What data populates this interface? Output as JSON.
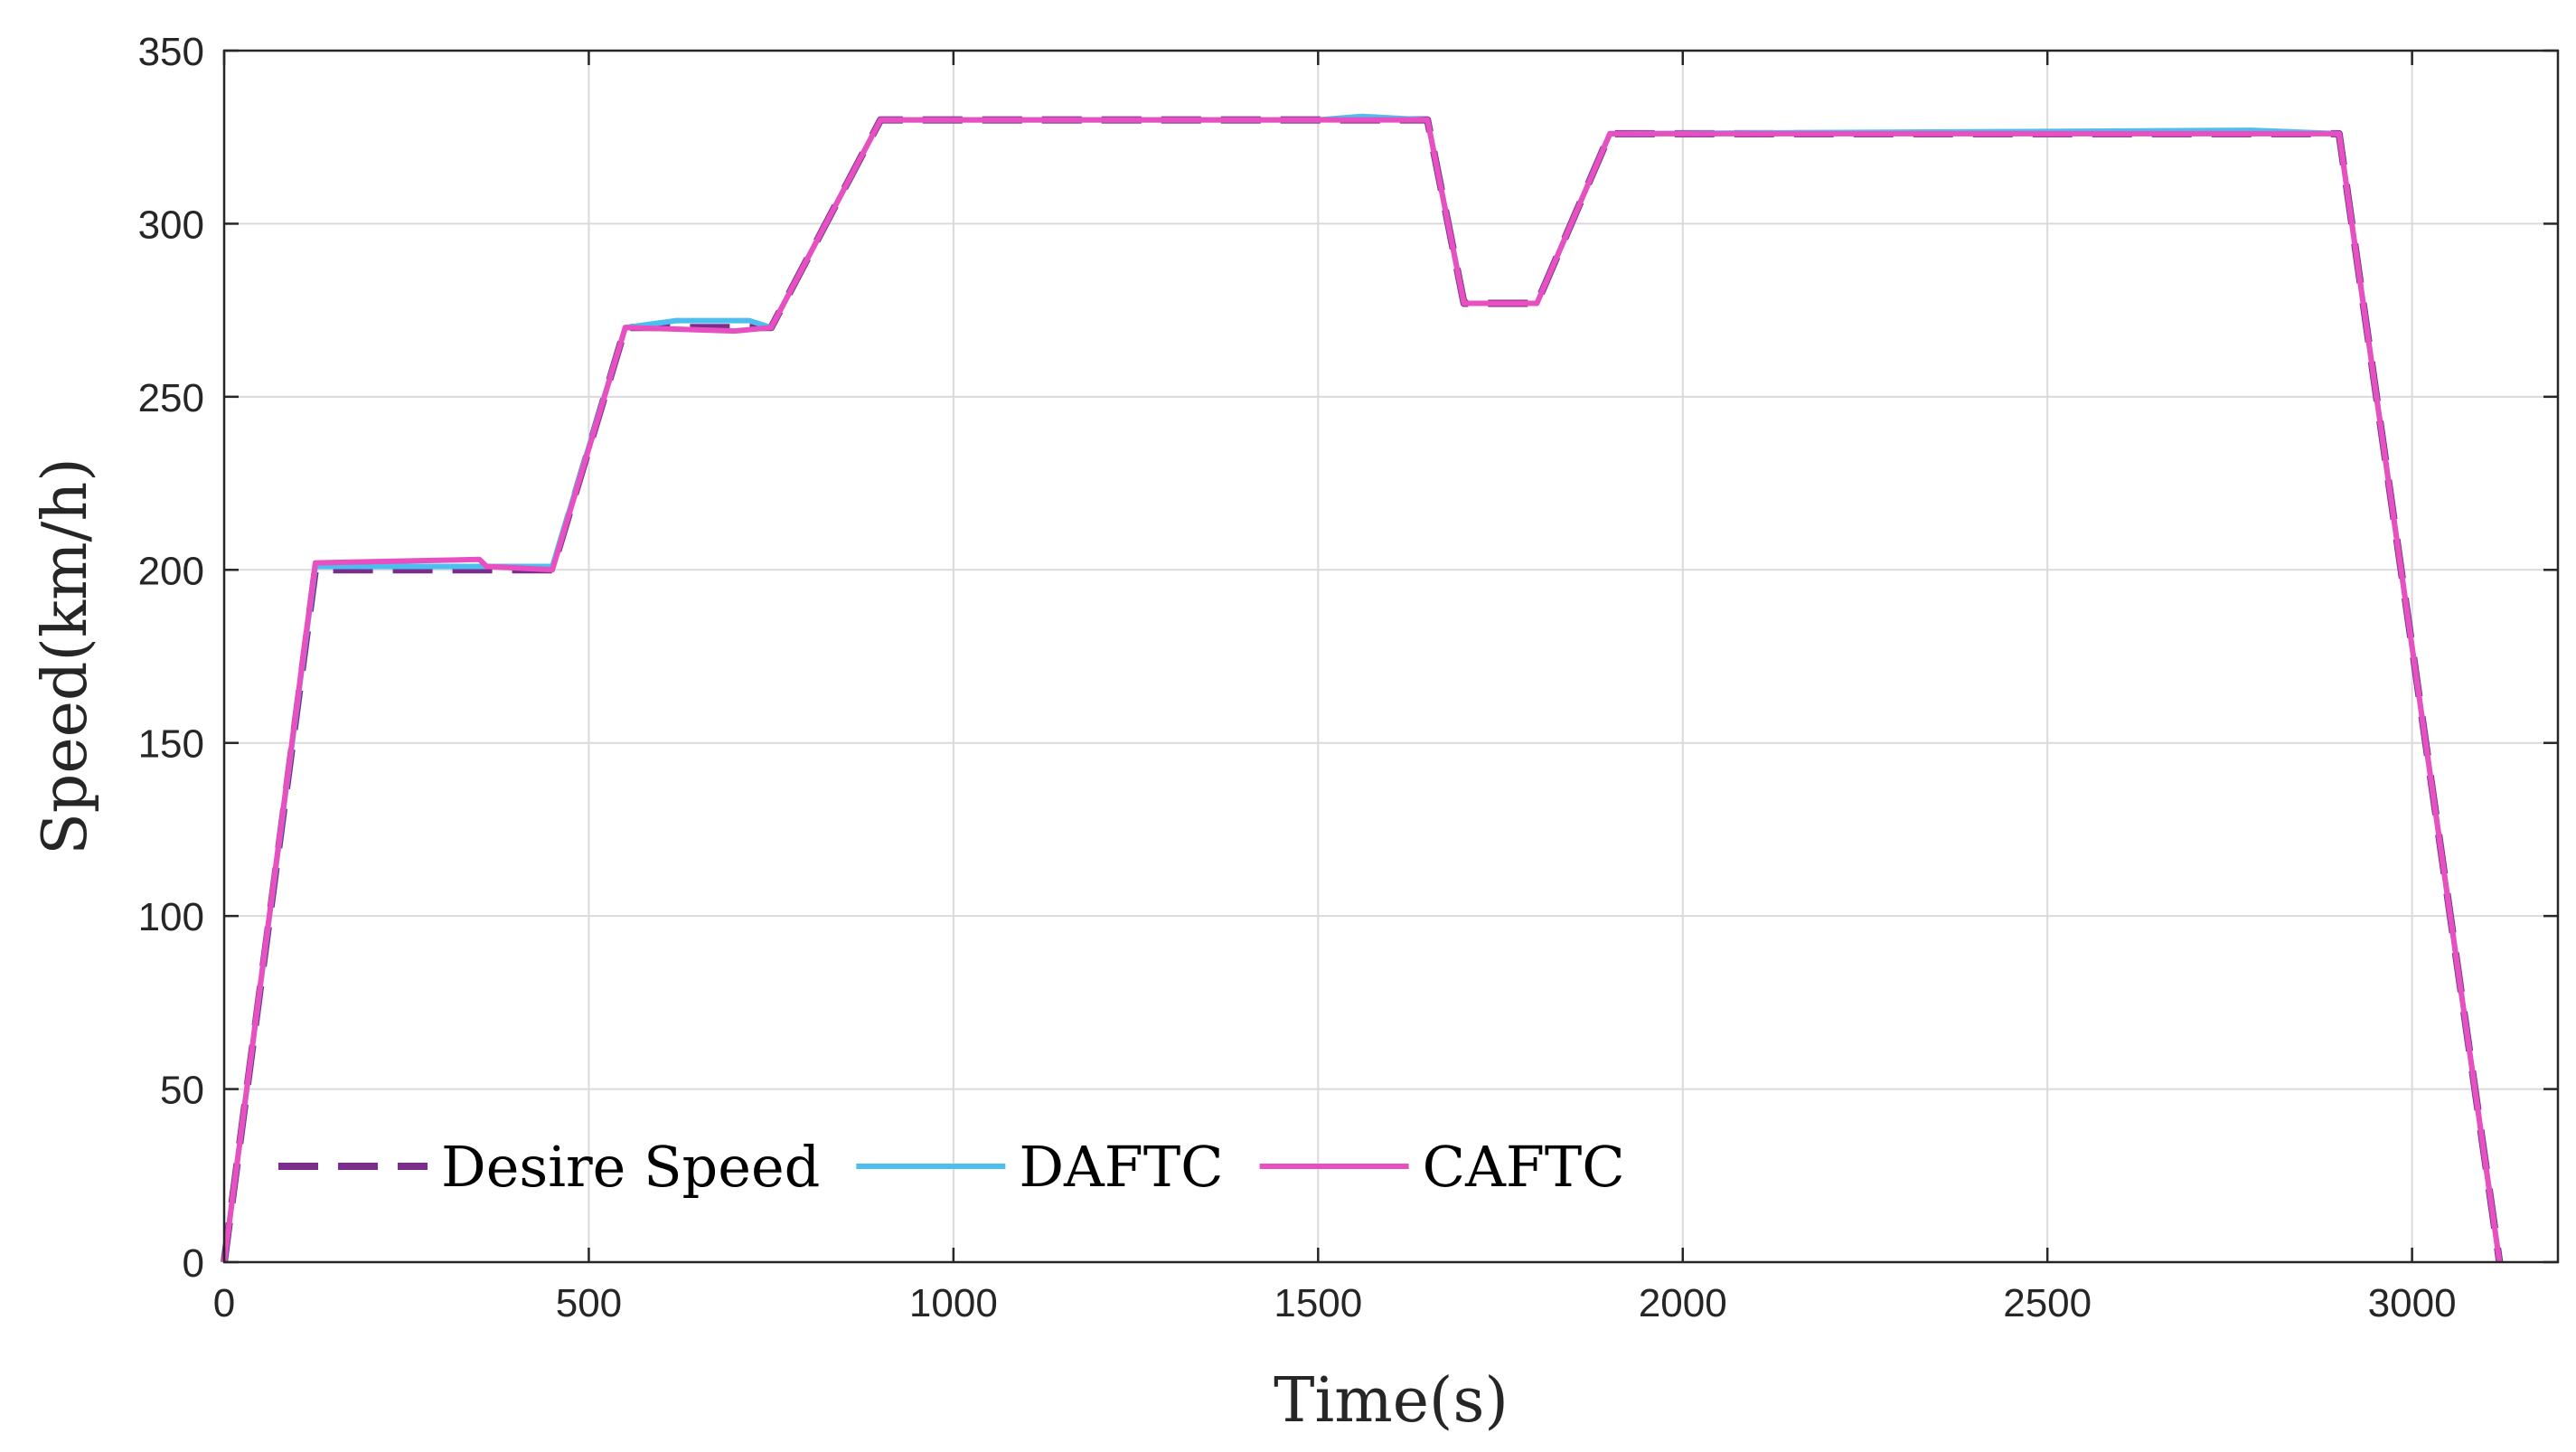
{
  "chart_data": {
    "type": "line",
    "xlabel": "Time(s)",
    "ylabel": "Speed(km/h)",
    "xlim": [
      0,
      3200
    ],
    "ylim": [
      0,
      350
    ],
    "xticks": [
      0,
      500,
      1000,
      1500,
      2000,
      2500,
      3000
    ],
    "yticks": [
      0,
      50,
      100,
      150,
      200,
      250,
      300,
      350
    ],
    "grid": true,
    "legend_position": "bottom-left",
    "series": [
      {
        "name": "Desire Speed",
        "color": "#7B2D8B",
        "style": "dashed",
        "x": [
          0,
          125,
          360,
          450,
          550,
          750,
          900,
          1650,
          1700,
          1800,
          1900,
          2900,
          3120
        ],
        "y": [
          0,
          200,
          200,
          200,
          270,
          270,
          330,
          330,
          277,
          277,
          326,
          326,
          0
        ]
      },
      {
        "name": "DAFTC",
        "color": "#4DBEEE",
        "style": "solid",
        "x": [
          0,
          125,
          360,
          450,
          550,
          620,
          720,
          750,
          900,
          1500,
          1560,
          1650,
          1700,
          1800,
          1900,
          2780,
          2900,
          3120
        ],
        "y": [
          0,
          201,
          201,
          201,
          270,
          272,
          272,
          270,
          330,
          330,
          331,
          330,
          277,
          277,
          326,
          327,
          326,
          0
        ]
      },
      {
        "name": "CAFTC",
        "color": "#E84FC0",
        "style": "solid",
        "x": [
          0,
          125,
          350,
          360,
          450,
          550,
          700,
          750,
          900,
          1650,
          1700,
          1800,
          1900,
          2900,
          3120
        ],
        "y": [
          0,
          202,
          203,
          201,
          200,
          270,
          269,
          270,
          330,
          330,
          277,
          277,
          326,
          326,
          0
        ]
      }
    ]
  }
}
